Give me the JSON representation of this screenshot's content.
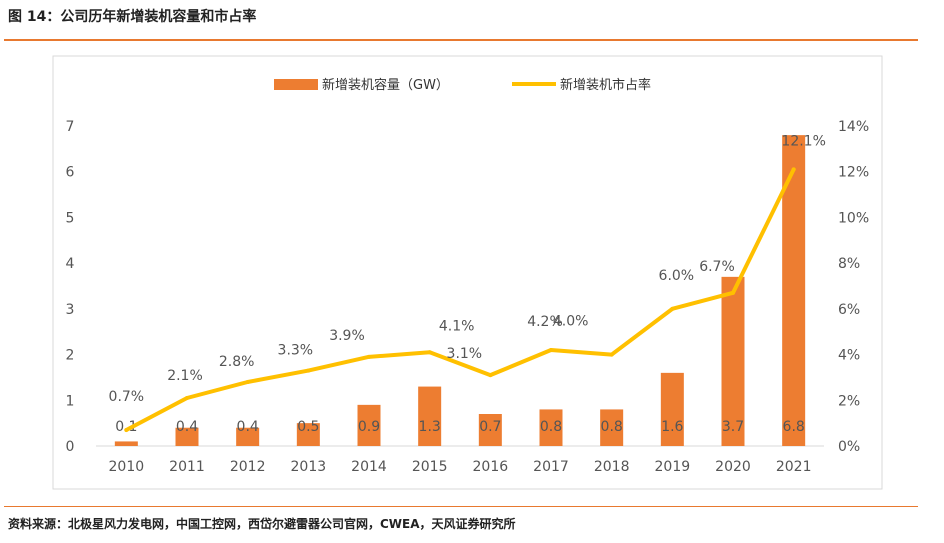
{
  "figure": {
    "title": "图 14：公司历年新增装机容量和市占率",
    "source": "资料来源：北极星风力发电网，中国工控网，西岱尔避雷器公司官网，CWEA，天风证券研究所"
  },
  "chart_data": {
    "type": "bar+line",
    "categories": [
      "2010",
      "2011",
      "2012",
      "2013",
      "2014",
      "2015",
      "2016",
      "2017",
      "2018",
      "2019",
      "2020",
      "2021"
    ],
    "series": [
      {
        "name": "新增装机容量（GW）",
        "type": "bar",
        "axis": "left",
        "color": "#ED7D31",
        "values": [
          0.1,
          0.4,
          0.4,
          0.5,
          0.9,
          1.3,
          0.7,
          0.8,
          0.8,
          1.6,
          3.7,
          6.8
        ],
        "labels": [
          "0.1",
          "0.4",
          "0.4",
          "0.5",
          "0.9",
          "1.3",
          "0.7",
          "0.8",
          "0.8",
          "1.6",
          "3.7",
          "6.8"
        ]
      },
      {
        "name": "新增装机市占率",
        "type": "line",
        "axis": "right",
        "color": "#FFC000",
        "values": [
          0.7,
          2.1,
          2.8,
          3.3,
          3.9,
          4.1,
          3.1,
          4.2,
          4.0,
          6.0,
          6.7,
          12.1
        ],
        "labels": [
          "0.7%",
          "2.1%",
          "2.8%",
          "3.3%",
          "3.9%",
          "4.1%",
          "3.1%",
          "4.2%",
          "4.0%",
          "6.0%",
          "6.7%",
          "12.1%"
        ]
      }
    ],
    "left_axis": {
      "min": 0,
      "max": 7,
      "ticks": [
        "0",
        "1",
        "2",
        "3",
        "4",
        "5",
        "6",
        "7"
      ]
    },
    "right_axis": {
      "min": 0,
      "max": 14,
      "ticks": [
        "0%",
        "2%",
        "4%",
        "6%",
        "8%",
        "10%",
        "12%",
        "14%"
      ]
    },
    "legend_position": "top"
  }
}
